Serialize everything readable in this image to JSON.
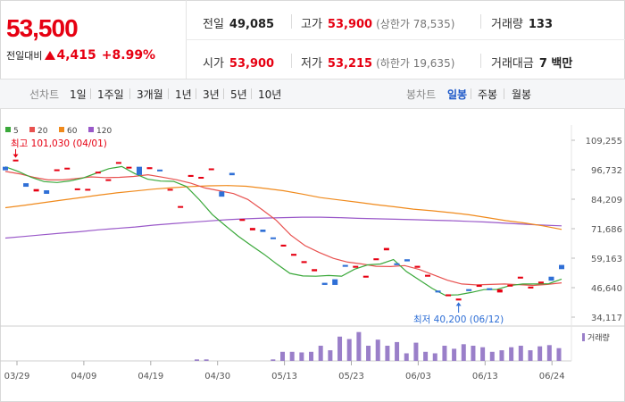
{
  "summary": {
    "price": "53,500",
    "change_label": "전일대비",
    "change_amount": "4,415",
    "change_pct": "+8.99%",
    "prev_close_label": "전일",
    "prev_close": "49,085",
    "high_label": "고가",
    "high": "53,900",
    "upper_limit_note": "(상한가 78,535)",
    "volume_label": "거래량",
    "volume": "133",
    "open_label": "시가",
    "open": "53,900",
    "low_label": "저가",
    "low": "53,215",
    "lower_limit_note": "(하한가 19,635)",
    "value_label": "거래대금",
    "value": "7 백만"
  },
  "tabs": {
    "line_label": "선차트",
    "line_periods": [
      "1일",
      "1주일",
      "3개월",
      "1년",
      "3년",
      "5년",
      "10년"
    ],
    "candle_label": "봉차트",
    "candle_periods": [
      "일봉",
      "주봉",
      "월봉"
    ],
    "active_candle": "일봉"
  },
  "colors": {
    "up": "#e60012",
    "down": "#2f6fd6",
    "ma5": "#3aa83a",
    "ma20": "#e8514f",
    "ma60": "#f08a1c",
    "ma120": "#9a59c9",
    "volume": "#9a7fc9"
  },
  "chart_data": {
    "type": "candlestick",
    "legend": [
      "5",
      "20",
      "60",
      "120"
    ],
    "y_ticks": [
      109255,
      96732,
      84209,
      71686,
      59163,
      46640,
      34117
    ],
    "ylim": [
      34117,
      109255
    ],
    "x_ticks": [
      "03/29",
      "04/09",
      "04/19",
      "04/30",
      "05/13",
      "05/23",
      "06/03",
      "06/13",
      "06/24"
    ],
    "high_annotation": "최고 101,030 (04/01)",
    "low_annotation": "최저 40,200 (06/12)",
    "volume_legend": "거래량",
    "candles": [
      {
        "o": 96500,
        "c": 98000,
        "up": false
      },
      {
        "o": 101030,
        "c": 100500,
        "up": true
      },
      {
        "o": 91000,
        "c": 89500,
        "up": false
      },
      {
        "o": 88500,
        "c": 87500,
        "up": true
      },
      {
        "o": 88000,
        "c": 86500,
        "up": false
      },
      {
        "o": 96500,
        "c": 96900,
        "up": true
      },
      {
        "o": 97200,
        "c": 97600,
        "up": true
      },
      {
        "o": 88800,
        "c": 88300,
        "up": true
      },
      {
        "o": 88600,
        "c": 88100,
        "up": true
      },
      {
        "o": 95500,
        "c": 95900,
        "up": true
      },
      {
        "o": 92300,
        "c": 92700,
        "up": true
      },
      {
        "o": 99600,
        "c": 100000,
        "up": true
      },
      {
        "o": 98000,
        "c": 97500,
        "up": true
      },
      {
        "o": 98000,
        "c": 94500,
        "up": false
      },
      {
        "o": 97800,
        "c": 97000,
        "up": true
      },
      {
        "o": 96800,
        "c": 96300,
        "up": false
      },
      {
        "o": 88600,
        "c": 88100,
        "up": true
      },
      {
        "o": 81300,
        "c": 80800,
        "up": true
      },
      {
        "o": 94500,
        "c": 93700,
        "up": true
      },
      {
        "o": 93700,
        "c": 93000,
        "up": true
      },
      {
        "o": 97300,
        "c": 96900,
        "up": true
      },
      {
        "o": 87500,
        "c": 85300,
        "up": false
      },
      {
        "o": 95400,
        "c": 94400,
        "up": false
      },
      {
        "o": 75800,
        "c": 75000,
        "up": true
      },
      {
        "o": 72000,
        "c": 71000,
        "up": true
      },
      {
        "o": 71300,
        "c": 70300,
        "up": false
      },
      {
        "o": 68000,
        "c": 67300,
        "up": false
      },
      {
        "o": 64900,
        "c": 64100,
        "up": true
      },
      {
        "o": 61000,
        "c": 60200,
        "up": true
      },
      {
        "o": 57900,
        "c": 57100,
        "up": true
      },
      {
        "o": 54500,
        "c": 53600,
        "up": true
      },
      {
        "o": 48700,
        "c": 47800,
        "up": false
      },
      {
        "o": 50200,
        "c": 47800,
        "up": false
      },
      {
        "o": 56300,
        "c": 55500,
        "up": false
      },
      {
        "o": 55900,
        "c": 55100,
        "up": true
      },
      {
        "o": 51700,
        "c": 50900,
        "up": true
      },
      {
        "o": 59100,
        "c": 58300,
        "up": true
      },
      {
        "o": 63500,
        "c": 62500,
        "up": true
      },
      {
        "o": 57000,
        "c": 56200,
        "up": false
      },
      {
        "o": 57800,
        "c": 58700,
        "up": false
      },
      {
        "o": 55900,
        "c": 55100,
        "up": true
      },
      {
        "o": 52100,
        "c": 51300,
        "up": true
      },
      {
        "o": 45400,
        "c": 44600,
        "up": false
      },
      {
        "o": 43800,
        "c": 43000,
        "up": true
      },
      {
        "o": 42000,
        "c": 41200,
        "up": true
      },
      {
        "o": 46000,
        "c": 45200,
        "up": false
      },
      {
        "o": 47800,
        "c": 47000,
        "up": true
      },
      {
        "o": 46400,
        "c": 45600,
        "up": false
      },
      {
        "o": 45900,
        "c": 44600,
        "up": true
      },
      {
        "o": 47900,
        "c": 47100,
        "up": true
      },
      {
        "o": 51300,
        "c": 50500,
        "up": true
      },
      {
        "o": 47100,
        "c": 46300,
        "up": true
      },
      {
        "o": 49200,
        "c": 48400,
        "up": true
      },
      {
        "o": 51300,
        "c": 49600,
        "up": false
      },
      {
        "o": 56300,
        "c": 54500,
        "up": false
      }
    ],
    "ma5": [
      98000,
      96000,
      93500,
      91700,
      91300,
      92000,
      93200,
      95200,
      97200,
      98100,
      95100,
      92700,
      91900,
      91800,
      89600,
      84000,
      77700,
      73000,
      68500,
      64600,
      60800,
      56600,
      52700,
      51600,
      51500,
      51800,
      51500,
      54500,
      56300,
      56700,
      58600,
      53500,
      49900,
      46300,
      43400,
      43600,
      44600,
      45800,
      45900,
      47500,
      48200,
      48200,
      48300,
      50300
    ],
    "ma20": [
      96000,
      95000,
      93500,
      92400,
      92400,
      93000,
      93700,
      93400,
      93500,
      93900,
      94600,
      93600,
      92500,
      91000,
      89000,
      87800,
      86600,
      84100,
      79800,
      75200,
      69000,
      64500,
      61600,
      59100,
      57500,
      56700,
      55700,
      55600,
      56000,
      54400,
      52100,
      49800,
      48200,
      47800,
      48000,
      48200,
      47900,
      47600,
      48000,
      48700
    ],
    "ma60": [
      80600,
      81600,
      82700,
      83800,
      84800,
      85900,
      86900,
      87700,
      88500,
      89100,
      89600,
      89900,
      90000,
      89700,
      88800,
      87800,
      86400,
      84900,
      83900,
      82900,
      81900,
      81000,
      80000,
      79300,
      78500,
      77600,
      76400,
      75100,
      74100,
      72900,
      71400
    ],
    "ma120": [
      67700,
      68400,
      69100,
      69800,
      70400,
      71200,
      71800,
      72400,
      73200,
      73800,
      74400,
      75000,
      75500,
      75900,
      76200,
      76400,
      76600,
      76600,
      76400,
      76100,
      75900,
      75700,
      75500,
      75300,
      75100,
      74800,
      74500,
      74000,
      73600,
      73200,
      72900
    ],
    "volume": [
      0,
      0,
      0,
      0,
      0,
      0,
      0,
      0,
      0,
      0,
      0,
      0,
      0,
      0,
      0,
      0,
      0,
      0,
      0,
      0,
      0.05,
      0.05,
      0,
      0,
      0,
      0,
      0,
      0,
      0.05,
      0.3,
      0.3,
      0.28,
      0.3,
      0.5,
      0.35,
      0.8,
      0.72,
      0.95,
      0.5,
      0.7,
      0.5,
      0.62,
      0.25,
      0.6,
      0.3,
      0.25,
      0.5,
      0.4,
      0.55,
      0.5,
      0.45,
      0.3,
      0.35,
      0.45,
      0.5,
      0.35,
      0.48,
      0.52,
      0.42
    ]
  }
}
